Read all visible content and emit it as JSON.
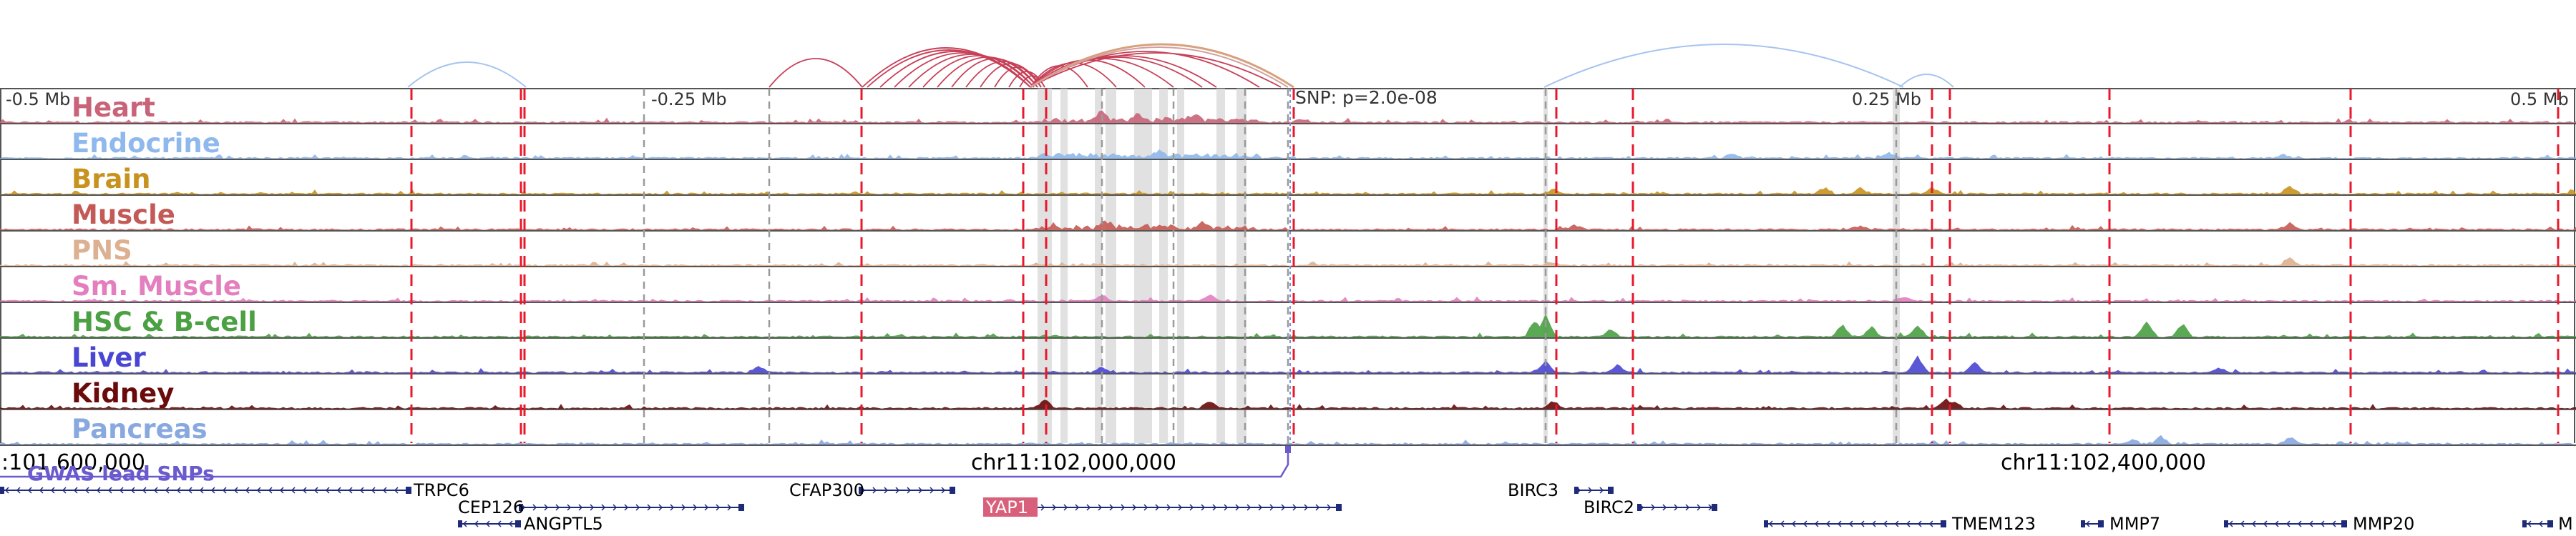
{
  "axis": {
    "ticks": [
      "-0.5 Mb",
      "-0.25 Mb",
      "0.25 Mb",
      "0.5 Mb"
    ],
    "snp_label": "SNP: p=2.0e-08",
    "coordinates": [
      ":101,600,000",
      "chr11:102,000,000",
      "chr11:102,400,000"
    ]
  },
  "tracks": [
    {
      "name": "Heart",
      "color": "#c96478"
    },
    {
      "name": "Endocrine",
      "color": "#8fb8ec"
    },
    {
      "name": "Brain",
      "color": "#c8921e"
    },
    {
      "name": "Muscle",
      "color": "#c45a55"
    },
    {
      "name": "PNS",
      "color": "#dcb090"
    },
    {
      "name": "Sm. Muscle",
      "color": "#e47fbf"
    },
    {
      "name": "HSC & B-cell",
      "color": "#4aa042"
    },
    {
      "name": "Liver",
      "color": "#4a46d4"
    },
    {
      "name": "Kidney",
      "color": "#6a0a0a"
    },
    {
      "name": "Pancreas",
      "color": "#88a8e0"
    }
  ],
  "gwas": {
    "label": "GWAS lead SNPs"
  },
  "genes": [
    {
      "name": "TRPC6"
    },
    {
      "name": "CEP126"
    },
    {
      "name": "ANGPTL5"
    },
    {
      "name": "CFAP300"
    },
    {
      "name": "YAP1",
      "highlight": "#d9607a"
    },
    {
      "name": "BIRC3"
    },
    {
      "name": "BIRC2"
    },
    {
      "name": "TMEM123"
    },
    {
      "name": "MMP7"
    },
    {
      "name": "MMP20"
    },
    {
      "name": "M"
    }
  ],
  "colors": {
    "gwas_line": "#e8192c",
    "loop_red": "#c74058",
    "loop_orange": "#d8a17d",
    "loop_blue": "#a7c4f0",
    "gene": "#1f2a7a",
    "frame": "#555555"
  }
}
